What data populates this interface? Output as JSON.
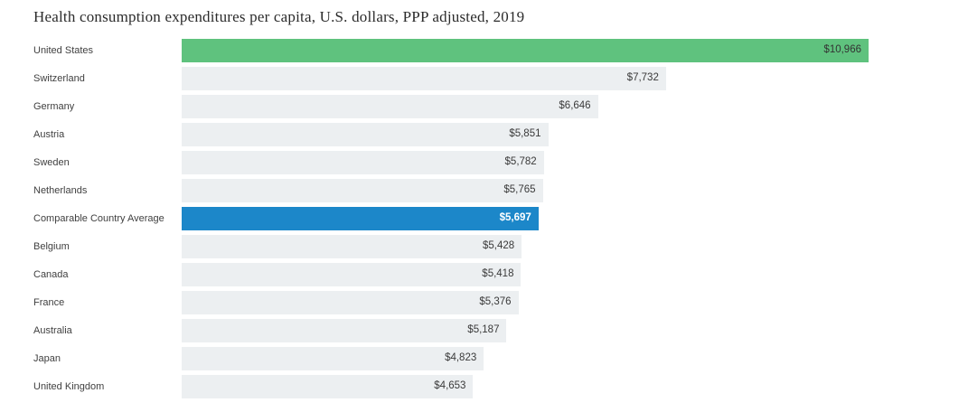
{
  "page": {
    "background": "#ffffff"
  },
  "chart_data": {
    "type": "bar",
    "orientation": "horizontal",
    "title": "Health consumption expenditures per capita, U.S. dollars, PPP adjusted, 2019",
    "xlabel": "",
    "ylabel": "",
    "xlim": [
      0,
      10966
    ],
    "grid": false,
    "legend": "none",
    "categories": [
      "United States",
      "Switzerland",
      "Germany",
      "Austria",
      "Sweden",
      "Netherlands",
      "Comparable Country Average",
      "Belgium",
      "Canada",
      "France",
      "Australia",
      "Japan",
      "United Kingdom"
    ],
    "values": [
      10966,
      7732,
      6646,
      5851,
      5782,
      5765,
      5697,
      5428,
      5418,
      5376,
      5187,
      4823,
      4653
    ],
    "value_labels": [
      "$10,966",
      "$7,732",
      "$6,646",
      "$5,851",
      "$5,782",
      "$5,765",
      "$5,697",
      "$5,428",
      "$5,418",
      "$5,376",
      "$5,187",
      "$4,823",
      "$4,653"
    ],
    "bar_colors": [
      "#5fc27e",
      "#eceff1",
      "#eceff1",
      "#eceff1",
      "#eceff1",
      "#eceff1",
      "#1c87c9",
      "#eceff1",
      "#eceff1",
      "#eceff1",
      "#eceff1",
      "#eceff1",
      "#eceff1"
    ],
    "value_text_colors": [
      "#333333",
      "#3a3a3a",
      "#3a3a3a",
      "#3a3a3a",
      "#3a3a3a",
      "#3a3a3a",
      "#ffffff",
      "#3a3a3a",
      "#3a3a3a",
      "#3a3a3a",
      "#3a3a3a",
      "#3a3a3a",
      "#3a3a3a"
    ],
    "value_bold": [
      false,
      false,
      false,
      false,
      false,
      false,
      true,
      false,
      false,
      false,
      false,
      false,
      false
    ]
  },
  "colors": {
    "bar_default": "#eceff1",
    "bar_united_states": "#5fc27e",
    "bar_average": "#1c87c9",
    "title_text": "#2b2b2b",
    "category_text": "#3f3f3f",
    "value_text": "#3a3a3a",
    "value_text_inverse": "#ffffff"
  }
}
